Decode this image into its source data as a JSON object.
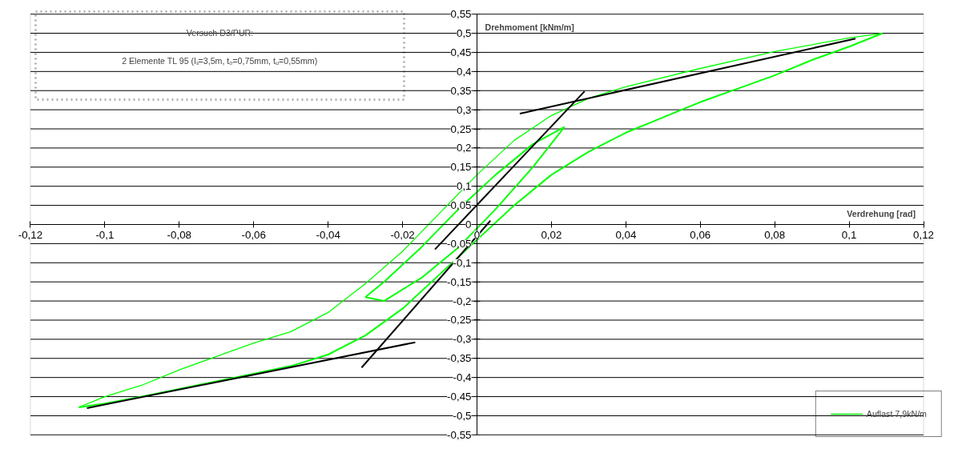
{
  "chart_data": {
    "type": "line",
    "xlabel": "Verdrehung [rad]",
    "ylabel": "Drehmoment [kNm/m]",
    "annotations": [
      "Versuch D3/PUR:",
      "2 Elemente TL 95 (lₛ=3,5m, tₒ=0,75mm, tᵤ=0,55mm)"
    ],
    "xlim": [
      -0.12,
      0.12
    ],
    "ylim": [
      -0.55,
      0.55
    ],
    "xticks": [
      {
        "value": -0.12,
        "label": "-0,12"
      },
      {
        "value": -0.1,
        "label": "-0,1"
      },
      {
        "value": -0.08,
        "label": "-0,08"
      },
      {
        "value": -0.06,
        "label": "-0,06"
      },
      {
        "value": -0.04,
        "label": "-0,04"
      },
      {
        "value": -0.02,
        "label": "-0,02"
      },
      0,
      {
        "value": 0.02,
        "label": "0,02"
      },
      {
        "value": 0.04,
        "label": "0,04"
      },
      {
        "value": 0.06,
        "label": "0,06"
      },
      {
        "value": 0.08,
        "label": "0,08"
      },
      {
        "value": 0.1,
        "label": "0,1"
      },
      {
        "value": 0.12,
        "label": "0,12"
      }
    ],
    "yticks": [
      {
        "value": -0.55,
        "label": "-0,55"
      },
      {
        "value": -0.5,
        "label": "-0,5"
      },
      {
        "value": -0.45,
        "label": "-0,45"
      },
      {
        "value": -0.4,
        "label": "-0,4"
      },
      {
        "value": -0.35,
        "label": "-0,35"
      },
      {
        "value": -0.3,
        "label": "-0,3"
      },
      {
        "value": -0.25,
        "label": "-0,25"
      },
      {
        "value": -0.2,
        "label": "-0,2"
      },
      {
        "value": -0.15,
        "label": "-0,15"
      },
      {
        "value": -0.1,
        "label": "-0,1"
      },
      {
        "value": -0.05,
        "label": "-0,05"
      },
      0,
      {
        "value": 0.05,
        "label": "0,05"
      },
      {
        "value": 0.1,
        "label": "0,1"
      },
      {
        "value": 0.15,
        "label": "0,15"
      },
      {
        "value": 0.2,
        "label": "0,2"
      },
      {
        "value": 0.25,
        "label": "0,25"
      },
      {
        "value": 0.3,
        "label": "0,3"
      },
      {
        "value": 0.35,
        "label": "0,35"
      },
      {
        "value": 0.4,
        "label": "0,4"
      },
      {
        "value": 0.45,
        "label": "0,45"
      },
      {
        "value": 0.5,
        "label": "0,5"
      },
      {
        "value": 0.55,
        "label": "0,55"
      }
    ],
    "grid": "y",
    "legend": "bottom right",
    "line_style": "solid",
    "series": [
      {
        "name": "Auflast 7,9kN/m",
        "color": "#00ff00",
        "x": [
          0.109,
          0.1,
          0.08,
          0.06,
          0.04,
          0.03,
          0.02,
          0.01,
          0.0,
          -0.01,
          -0.02,
          -0.03,
          -0.04,
          -0.05,
          -0.06,
          -0.07,
          -0.08,
          -0.09,
          -0.1,
          -0.107
        ],
        "values": [
          0.5,
          0.488,
          0.452,
          0.408,
          0.36,
          0.33,
          0.285,
          0.22,
          0.13,
          0.03,
          -0.07,
          -0.155,
          -0.23,
          -0.28,
          -0.31,
          -0.345,
          -0.38,
          -0.42,
          -0.45,
          -0.478
        ]
      },
      {
        "type": "line",
        "color": "#00ff00",
        "x": [
          -0.107,
          -0.1,
          -0.09,
          -0.08,
          -0.07,
          -0.06,
          -0.05,
          -0.04,
          -0.03,
          -0.02,
          -0.01,
          0.0,
          0.01,
          0.02,
          0.03,
          0.04,
          0.05,
          0.06,
          0.07,
          0.08,
          0.09,
          0.1,
          0.109
        ],
        "values": [
          -0.478,
          -0.468,
          -0.45,
          -0.43,
          -0.41,
          -0.39,
          -0.37,
          -0.34,
          -0.29,
          -0.22,
          -0.13,
          -0.04,
          0.05,
          0.13,
          0.19,
          0.24,
          0.28,
          0.32,
          0.355,
          0.39,
          0.43,
          0.465,
          0.5
        ]
      },
      {
        "type": "line",
        "color": "#00ff00",
        "x": [
          0.0235,
          0.015,
          0.005,
          -0.005,
          -0.015,
          -0.025,
          -0.03
        ],
        "values": [
          0.255,
          0.21,
          0.13,
          0.04,
          -0.06,
          -0.15,
          -0.19
        ]
      },
      {
        "type": "line",
        "color": "#00ff00",
        "x": [
          -0.03,
          -0.025,
          -0.015,
          -0.005,
          0.005,
          0.015,
          0.0235
        ],
        "values": [
          -0.19,
          -0.2,
          -0.14,
          -0.06,
          0.04,
          0.15,
          0.255
        ]
      },
      {
        "type": "line",
        "color": "#000000",
        "x": [
          0.0115,
          0.1017
        ],
        "values": [
          0.29,
          0.486
        ]
      },
      {
        "type": "line",
        "color": "#000000",
        "x": [
          -0.0113,
          0.0289
        ],
        "values": [
          -0.065,
          0.348
        ]
      },
      {
        "type": "line",
        "color": "#000000",
        "x": [
          -0.031,
          0.0036
        ],
        "values": [
          -0.374,
          0.01
        ]
      },
      {
        "type": "line",
        "color": "#000000",
        "x": [
          -0.1048,
          -0.0166
        ],
        "values": [
          -0.48,
          -0.308
        ]
      }
    ]
  }
}
